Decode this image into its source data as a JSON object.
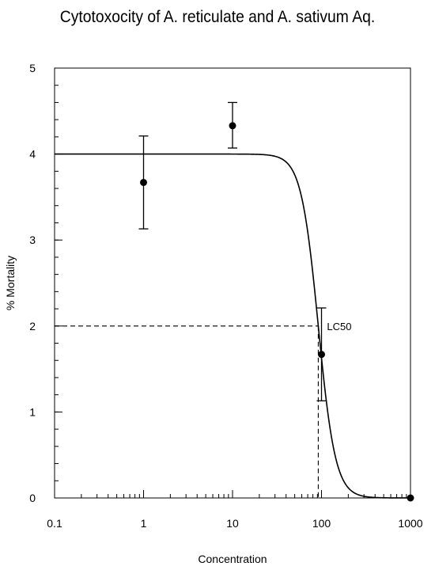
{
  "chart_data": {
    "type": "scatter",
    "title": "Cytotoxocity of A. reticulate and  A. sativum Aq.",
    "xlabel": "Concentration",
    "ylabel": "% Mortality",
    "xscale": "log",
    "xlim": [
      0.1,
      1000
    ],
    "ylim": [
      0,
      5
    ],
    "x_ticks": [
      0.1,
      1,
      10,
      100,
      1000
    ],
    "x_tick_labels": [
      "0.1",
      "1",
      "10",
      "100",
      "1000"
    ],
    "y_ticks": [
      0,
      1,
      2,
      3,
      4,
      5
    ],
    "y_tick_labels": [
      "0",
      "1",
      "2",
      "3",
      "4",
      "5"
    ],
    "grid": false,
    "points": [
      {
        "x": 1,
        "y": 3.67,
        "err_low": 3.13,
        "err_high": 4.21
      },
      {
        "x": 10,
        "y": 4.33,
        "err_low": 4.07,
        "err_high": 4.6
      },
      {
        "x": 100,
        "y": 1.67,
        "err_low": 1.13,
        "err_high": 2.21
      },
      {
        "x": 1000,
        "y": 0
      }
    ],
    "fit_curve": {
      "type": "sigmoid",
      "top": 4.0,
      "bottom": 0,
      "lc50": 92,
      "hill": 4.5
    },
    "annotation": {
      "text": "LC50",
      "x": 92,
      "y": 2.0
    },
    "colors": {
      "line": "#000000",
      "background": "#ffffff"
    }
  }
}
